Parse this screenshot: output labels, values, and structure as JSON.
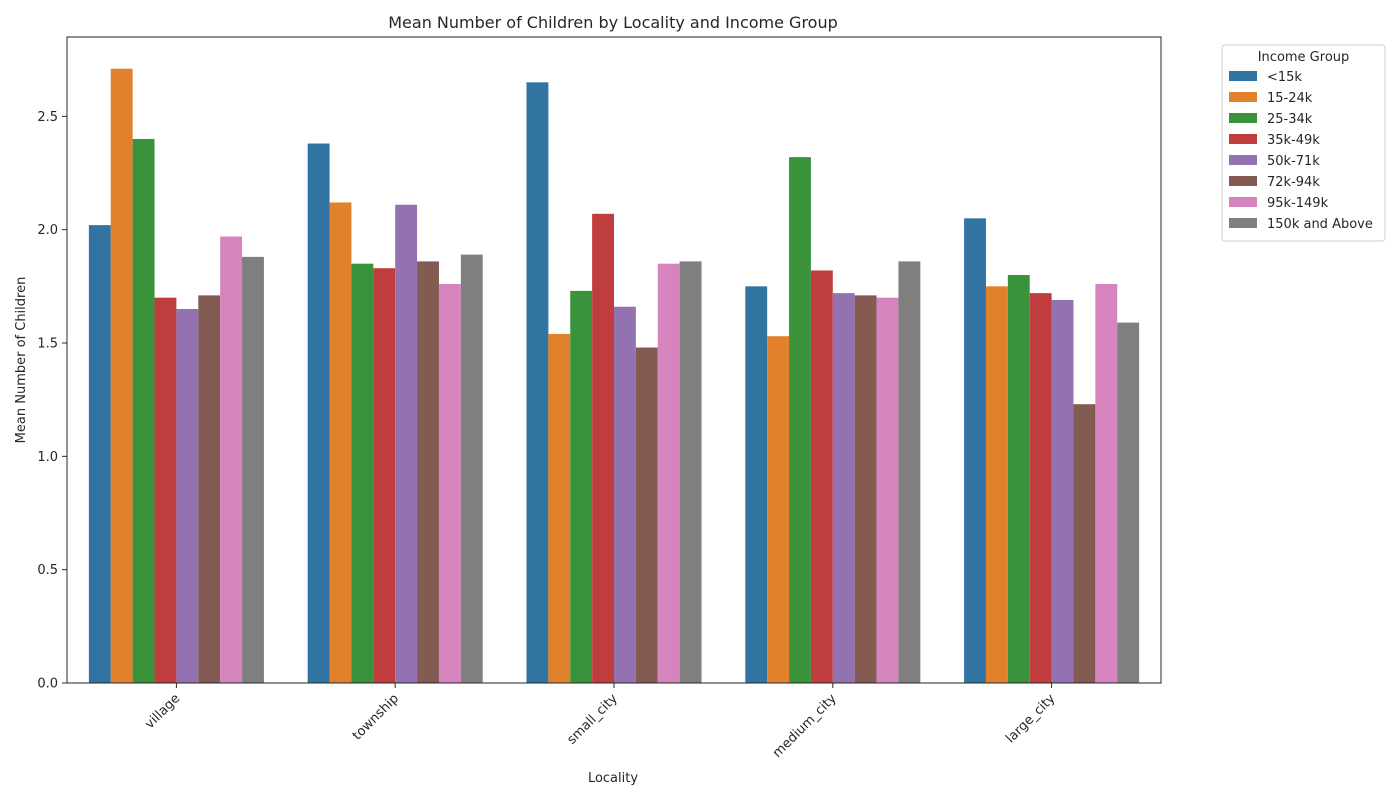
{
  "chart_data": {
    "type": "bar",
    "title": "Mean Number of Children by Locality and Income Group",
    "xlabel": "Locality",
    "ylabel": "Mean Number of Children",
    "ylim": [
      0,
      2.85
    ],
    "yticks": [
      0.0,
      0.5,
      1.0,
      1.5,
      2.0,
      2.5
    ],
    "ytick_labels": [
      "0.0",
      "0.5",
      "1.0",
      "1.5",
      "2.0",
      "2.5"
    ],
    "grid": false,
    "legend": {
      "title": "Income Group",
      "placement": "outside-top-right"
    },
    "categories": [
      "village",
      "township",
      "small_city",
      "medium_city",
      "large_city"
    ],
    "series": [
      {
        "name": "<15k",
        "color": "#3274a1",
        "values": [
          2.02,
          2.38,
          2.65,
          1.75,
          2.05
        ]
      },
      {
        "name": "15-24k",
        "color": "#e1812c",
        "values": [
          2.71,
          2.12,
          1.54,
          1.53,
          1.75
        ]
      },
      {
        "name": "25-34k",
        "color": "#3a923a",
        "values": [
          2.4,
          1.85,
          1.73,
          2.32,
          1.8
        ]
      },
      {
        "name": "35k-49k",
        "color": "#c03d3e",
        "values": [
          1.7,
          1.83,
          2.07,
          1.82,
          1.72
        ]
      },
      {
        "name": "50k-71k",
        "color": "#9372b2",
        "values": [
          1.65,
          2.11,
          1.66,
          1.72,
          1.69
        ]
      },
      {
        "name": "72k-94k",
        "color": "#845b53",
        "values": [
          1.71,
          1.86,
          1.48,
          1.71,
          1.23
        ]
      },
      {
        "name": "95k-149k",
        "color": "#d684bd",
        "values": [
          1.97,
          1.76,
          1.85,
          1.7,
          1.76
        ]
      },
      {
        "name": "150k and Above",
        "color": "#7f7f7f",
        "values": [
          1.88,
          1.89,
          1.86,
          1.86,
          1.59
        ]
      }
    ]
  }
}
